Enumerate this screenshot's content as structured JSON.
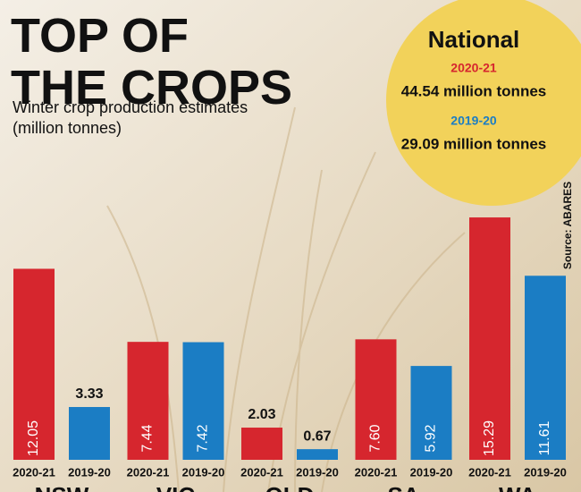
{
  "chart_data": {
    "type": "bar",
    "title": "TOP OF THE CROPS",
    "subtitle": "Winter crop production estimates (million tonnes)",
    "source": "Source: ABARES",
    "categories": [
      "NSW",
      "VIC",
      "QLD",
      "SA",
      "WA"
    ],
    "series": [
      {
        "name": "2020-21",
        "color": "#d6262e",
        "values": [
          12.05,
          7.44,
          2.03,
          7.6,
          15.29
        ],
        "value_labels": [
          "12.05",
          "7.44",
          "2.03",
          "7.60",
          "15.29"
        ]
      },
      {
        "name": "2019-20",
        "color": "#1b7dc4",
        "values": [
          3.33,
          7.42,
          0.67,
          5.92,
          11.61
        ],
        "value_labels": [
          "3.33",
          "7.42",
          "0.67",
          "5.92",
          "11.61"
        ]
      }
    ],
    "national": {
      "title": "National",
      "items": [
        {
          "label": "2020-21",
          "value": "44.54 million tonnes"
        },
        {
          "label": "2019-20",
          "value": "29.09 million tonnes"
        }
      ]
    }
  }
}
